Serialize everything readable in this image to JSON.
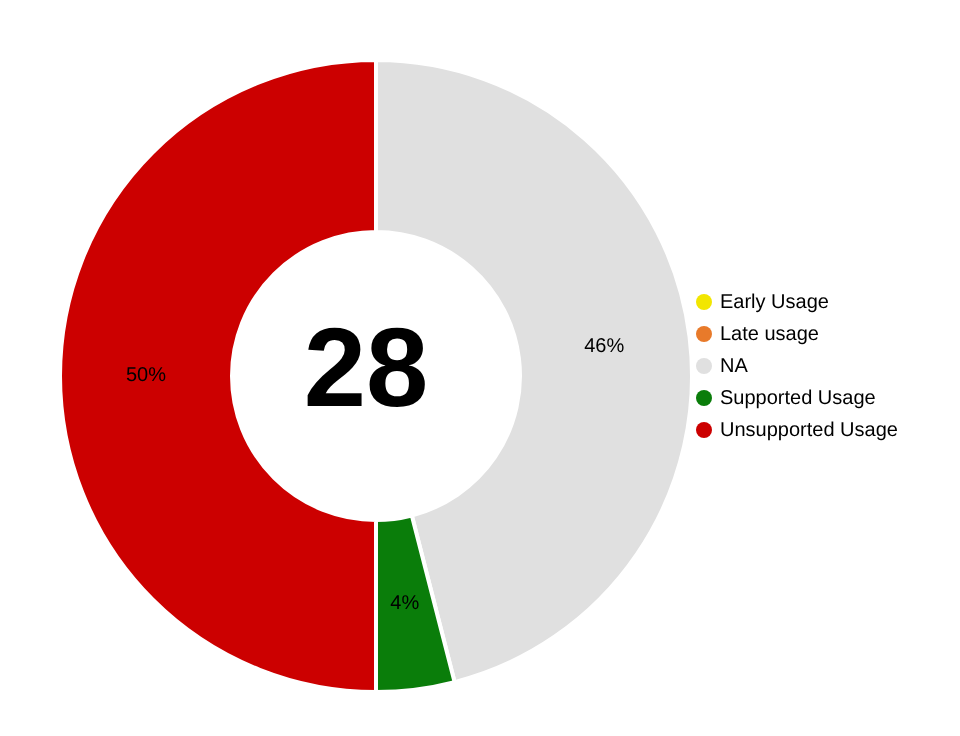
{
  "chart_data": {
    "type": "donut",
    "categories": [
      "NA",
      "Early Usage",
      "Supported Usage",
      "Late usage",
      "Unsupported Usage"
    ],
    "values": [
      46,
      0,
      4,
      0,
      50
    ],
    "colors": [
      "#e0e0e0",
      "#f2e600",
      "#0a7d0a",
      "#e87a2a",
      "#cc0000"
    ],
    "value_labels": [
      "46%",
      null,
      "4%",
      null,
      "50%"
    ],
    "annotations": [
      "28"
    ],
    "legend": "right"
  }
}
